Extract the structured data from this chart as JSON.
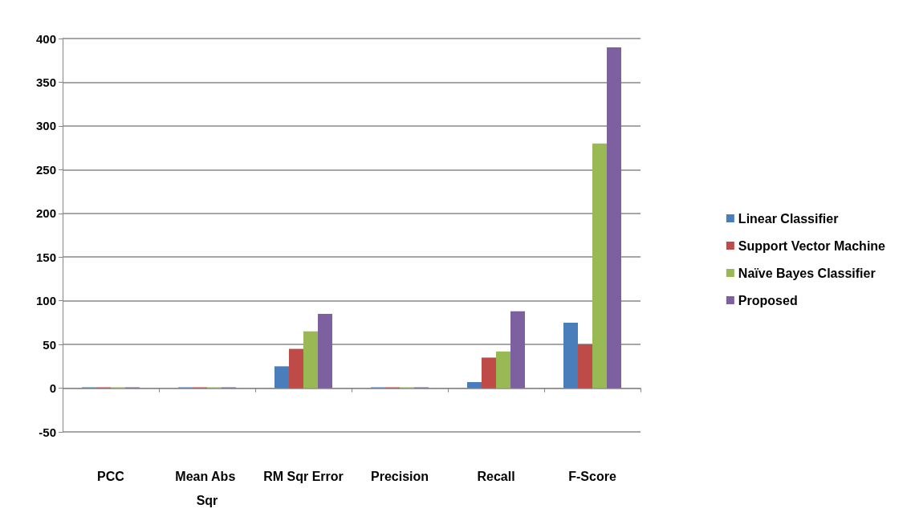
{
  "chart_data": {
    "type": "bar",
    "categories": [
      "PCC",
      "Mean Abs Sqr",
      "RM Sqr Error",
      "Precision",
      "Recall",
      "F-Score"
    ],
    "series": [
      {
        "name": "Linear Classifier",
        "color": "#4a7ebb",
        "values": [
          1,
          1,
          25,
          1,
          7,
          75
        ]
      },
      {
        "name": "Support Vector Machine",
        "color": "#be4b48",
        "values": [
          1,
          1,
          45,
          1,
          35,
          50
        ]
      },
      {
        "name": "Naïve Bayes Classifier",
        "color": "#98b954",
        "values": [
          1,
          1,
          65,
          1,
          42,
          280
        ]
      },
      {
        "name": "Proposed",
        "color": "#7d60a0",
        "values": [
          1,
          1,
          85,
          1,
          88,
          390
        ]
      }
    ],
    "ylim": [
      -50,
      400
    ],
    "yticks": [
      -50,
      0,
      50,
      100,
      150,
      200,
      250,
      300,
      350,
      400
    ],
    "grid": "y",
    "legend": "right"
  }
}
